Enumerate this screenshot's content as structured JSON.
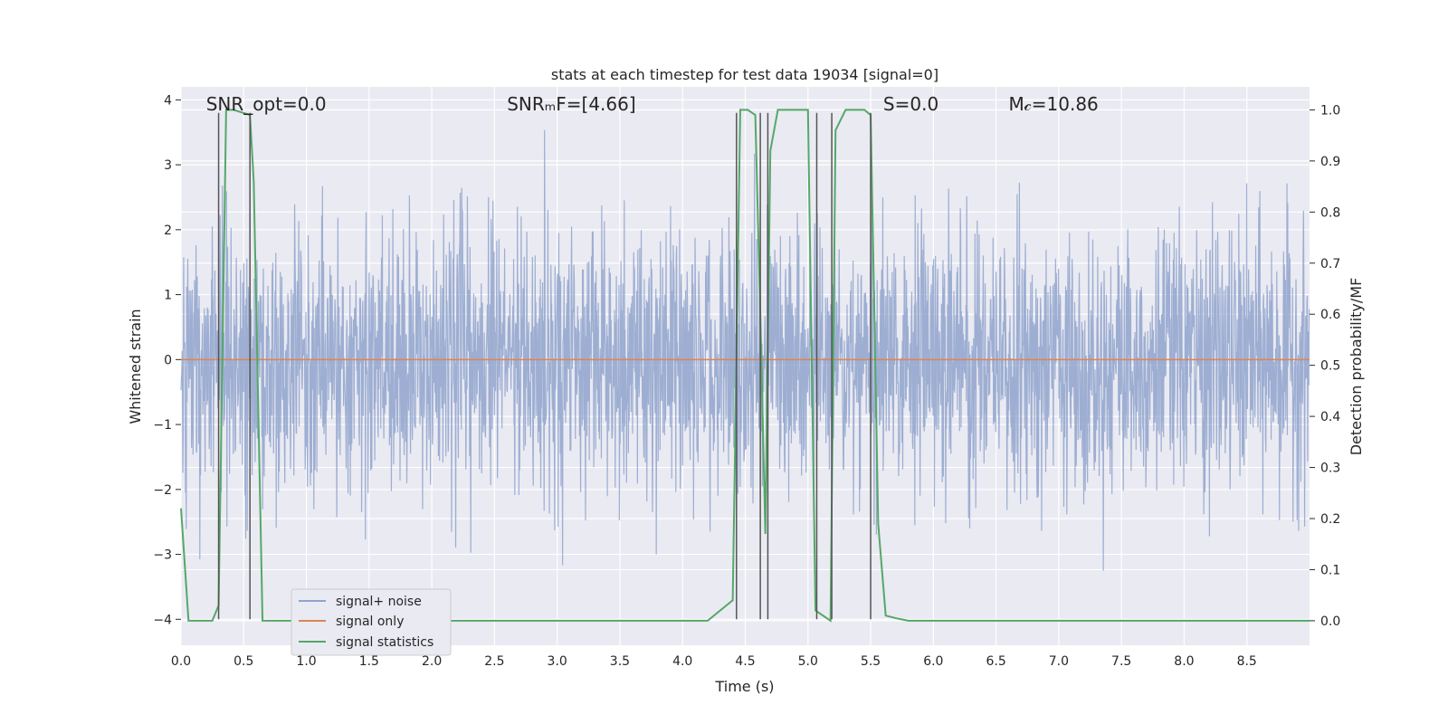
{
  "chart_data": {
    "type": "line",
    "title": "stats at each timestep for test data 19034 [signal=0]",
    "xlabel": "Time (s)",
    "ylabel_left": "Whitened strain",
    "ylabel_right": "Detection probability/MF",
    "xlim": [
      0.0,
      9.0
    ],
    "ylim_left": [
      -4.4,
      4.2
    ],
    "ylim_right": [
      -0.048,
      1.045
    ],
    "x_ticks": [
      0.0,
      0.5,
      1.0,
      1.5,
      2.0,
      2.5,
      3.0,
      3.5,
      4.0,
      4.5,
      5.0,
      5.5,
      6.0,
      6.5,
      7.0,
      7.5,
      8.0,
      8.5
    ],
    "x_tick_labels": [
      "0.0",
      "0.5",
      "1.0",
      "1.5",
      "2.0",
      "2.5",
      "3.0",
      "3.5",
      "4.0",
      "4.5",
      "5.0",
      "5.5",
      "6.0",
      "6.5",
      "7.0",
      "7.5",
      "8.0",
      "8.5"
    ],
    "y_left_ticks": [
      -4,
      -3,
      -2,
      -1,
      0,
      1,
      2,
      3,
      4
    ],
    "y_left_tick_labels": [
      "−4",
      "−3",
      "−2",
      "−1",
      "0",
      "1",
      "2",
      "3",
      "4"
    ],
    "y_right_ticks": [
      0.0,
      0.1,
      0.2,
      0.3,
      0.4,
      0.5,
      0.6,
      0.7,
      0.8,
      0.9,
      1.0
    ],
    "y_right_tick_labels": [
      "0.0",
      "0.1",
      "0.2",
      "0.3",
      "0.4",
      "0.5",
      "0.6",
      "0.7",
      "0.8",
      "0.9",
      "1.0"
    ],
    "grid": true,
    "legend_position": "lower-left",
    "annotations": [
      {
        "id": "snr-opt",
        "text": "SNR_opt=0.0",
        "x": 0.2
      },
      {
        "id": "snr-mf",
        "text": "SNRₘF=[4.66]",
        "x": 2.6
      },
      {
        "id": "s-value",
        "text": "S=0.0",
        "x": 5.6
      },
      {
        "id": "mc-value",
        "text": "M𝒸=10.86",
        "x": 6.6
      }
    ],
    "series": [
      {
        "name": "signal+ noise",
        "color": "#8fa3cc",
        "axis": "left",
        "kind": "noise",
        "sigma": 1.0,
        "seed": 19034,
        "n_samples": 3000
      },
      {
        "name": "signal only",
        "color": "#dd8452",
        "axis": "left",
        "kind": "constant",
        "value": 0.0
      },
      {
        "name": "signal statistics",
        "color": "#55a868",
        "axis": "right",
        "x": [
          0.0,
          0.06,
          0.12,
          0.25,
          0.3,
          0.36,
          0.42,
          0.55,
          0.58,
          0.65,
          0.7,
          0.8,
          1.0,
          2.0,
          3.0,
          4.0,
          4.2,
          4.4,
          4.46,
          4.52,
          4.58,
          4.62,
          4.66,
          4.7,
          4.76,
          4.82,
          5.0,
          5.06,
          5.12,
          5.18,
          5.22,
          5.3,
          5.45,
          5.5,
          5.56,
          5.62,
          5.7,
          5.8,
          6.0,
          7.0,
          8.0,
          9.0
        ],
        "y": [
          0.22,
          0.0,
          0.0,
          0.0,
          0.03,
          1.0,
          1.0,
          0.99,
          0.86,
          0.0,
          0.0,
          0.0,
          0.0,
          0.0,
          0.0,
          0.0,
          0.0,
          0.04,
          1.0,
          1.0,
          0.99,
          0.6,
          0.17,
          0.92,
          1.0,
          1.0,
          1.0,
          0.02,
          0.01,
          0.0,
          0.96,
          1.0,
          1.0,
          0.99,
          0.19,
          0.01,
          0.005,
          0.0,
          0.0,
          0.0,
          0.0,
          0.0
        ]
      }
    ],
    "vertical_lines": {
      "color": "#555555",
      "x": [
        0.3,
        0.55,
        4.43,
        4.62,
        4.68,
        5.07,
        5.19,
        5.5
      ],
      "y_top": 3.8,
      "y_bottom": -4.0
    }
  }
}
